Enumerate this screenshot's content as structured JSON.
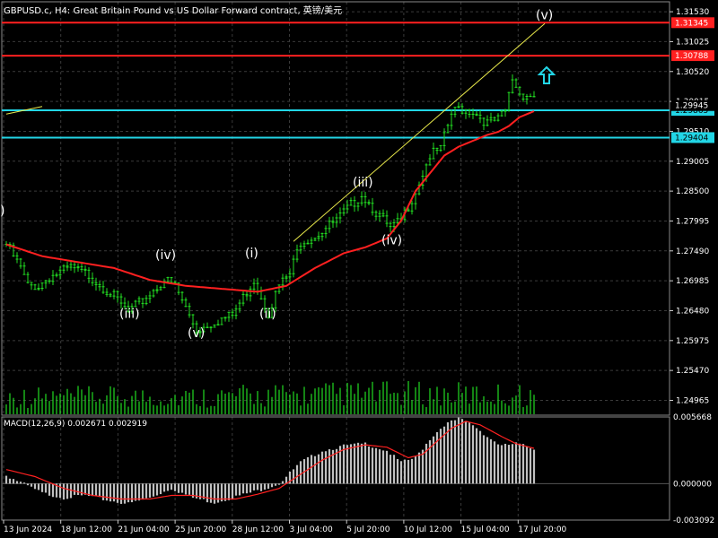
{
  "window": {
    "title": "GBPUSD.c, H4:  Great Britain Pound vs US Dollar Forward contract, 英镑/美元"
  },
  "colors": {
    "background": "#000000",
    "grid": "#3a3a3a",
    "bull_candle": "#22dd22",
    "moving_average": "#ff2020",
    "resistance_line": "#ff2020",
    "support_line": "#22d6e6",
    "trend_line": "#e8e84a",
    "arrow": "#22d6e6",
    "volume": "#22dd22",
    "macd_histogram": "#c0c0c0",
    "macd_signal": "#ff2020"
  },
  "price_axis": {
    "ticks": [
      "1.31530",
      "1.31025",
      "1.30520",
      "1.30015",
      "1.29510",
      "1.29005",
      "1.28500",
      "1.27995",
      "1.27490",
      "1.26985",
      "1.26480",
      "1.25975",
      "1.25470",
      "1.24965"
    ]
  },
  "price_tags": [
    {
      "label": "1.31345",
      "value": 1.31345,
      "kind": "resistance"
    },
    {
      "label": "1.30788",
      "value": 1.30788,
      "kind": "resistance"
    },
    {
      "label": "1.29865",
      "value": 1.29865,
      "kind": "support"
    },
    {
      "label": "1.29404",
      "value": 1.29404,
      "kind": "support"
    },
    {
      "label": "1.29945",
      "value": 1.29945,
      "kind": "current"
    }
  ],
  "time_axis": {
    "ticks": [
      "13 Jun 2024",
      "18 Jun 12:00",
      "21 Jun 04:00",
      "25 Jun 20:00",
      "28 Jun 12:00",
      "3 Jul 04:00",
      "5 Jul 20:00",
      "10 Jul 12:00",
      "15 Jul 04:00",
      "17 Jul 20:00"
    ]
  },
  "wave_labels": [
    {
      "text": "(iii)",
      "price": 1.2636,
      "bar": 34
    },
    {
      "text": "(iv)",
      "price": 1.2735,
      "bar": 44
    },
    {
      "text": "(v)",
      "price": 1.2603,
      "bar": 53
    },
    {
      "text": "(i)",
      "price": 1.2738,
      "bar": 69
    },
    {
      "text": "(ii)",
      "price": 1.2636,
      "bar": 73
    },
    {
      "text": "(iii)",
      "price": 1.2858,
      "bar": 99
    },
    {
      "text": "(iv)",
      "price": 1.276,
      "bar": 107
    },
    {
      "text": "(v)",
      "price": 1.314,
      "bar": 150
    },
    {
      "text": ")",
      "price": 1.281,
      "bar": 0
    }
  ],
  "macd": {
    "label": "MACD(12,26,9) 0.002671 0.002919",
    "ticks": [
      "0.005668",
      "0.000000",
      "-0.003092"
    ]
  },
  "chart_data": {
    "type": "candlestick",
    "title": "GBPUSD.c, H4:  Great Britain Pound vs US Dollar Forward contract, 英镑/美元",
    "timeframe": "H4",
    "ylim": [
      1.24715,
      1.31698
    ],
    "price": {
      "anchors": [
        [
          0,
          1.276
        ],
        [
          4,
          1.272
        ],
        [
          6,
          1.269
        ],
        [
          9,
          1.269
        ],
        [
          12,
          1.2705
        ],
        [
          18,
          1.272
        ],
        [
          23,
          1.2708
        ],
        [
          29,
          1.2678
        ],
        [
          34,
          1.2645
        ],
        [
          38,
          1.2665
        ],
        [
          44,
          1.27
        ],
        [
          47,
          1.269
        ],
        [
          53,
          1.2615
        ],
        [
          58,
          1.263
        ],
        [
          63,
          1.264
        ],
        [
          69,
          1.27
        ],
        [
          73,
          1.2645
        ],
        [
          76,
          1.269
        ],
        [
          79,
          1.271
        ],
        [
          82,
          1.2765
        ],
        [
          86,
          1.2775
        ],
        [
          92,
          1.28
        ],
        [
          99,
          1.2845
        ],
        [
          103,
          1.2815
        ],
        [
          107,
          1.2785
        ],
        [
          110,
          1.28
        ],
        [
          114,
          1.285
        ],
        [
          118,
          1.291
        ],
        [
          121,
          1.292
        ],
        [
          124,
          1.298
        ],
        [
          126,
          1.299
        ],
        [
          130,
          1.2985
        ],
        [
          134,
          1.2965
        ],
        [
          137,
          1.297
        ],
        [
          139,
          1.2985
        ],
        [
          141,
          1.304
        ],
        [
          143,
          1.3015
        ],
        [
          147,
          1.301
        ]
      ]
    },
    "moving_average": {
      "anchors": [
        [
          0,
          1.276
        ],
        [
          10,
          1.274
        ],
        [
          20,
          1.273
        ],
        [
          30,
          1.272
        ],
        [
          40,
          1.27
        ],
        [
          50,
          1.269
        ],
        [
          60,
          1.2685
        ],
        [
          70,
          1.268
        ],
        [
          78,
          1.269
        ],
        [
          86,
          1.272
        ],
        [
          94,
          1.2745
        ],
        [
          100,
          1.2755
        ],
        [
          106,
          1.277
        ],
        [
          110,
          1.28
        ],
        [
          114,
          1.285
        ],
        [
          118,
          1.288
        ],
        [
          122,
          1.291
        ],
        [
          126,
          1.2925
        ],
        [
          130,
          1.2935
        ],
        [
          134,
          1.2945
        ],
        [
          137,
          1.295
        ],
        [
          140,
          1.296
        ],
        [
          143,
          1.2975
        ],
        [
          147,
          1.2985
        ]
      ]
    },
    "horizontal_levels": [
      1.31345,
      1.30788,
      1.29865,
      1.29404
    ],
    "trend_lines": [
      {
        "from": [
          0,
          1.298
        ],
        "to": [
          10,
          1.2993
        ]
      },
      {
        "from": [
          80,
          1.2765
        ],
        "to": [
          150,
          1.3133
        ]
      }
    ],
    "macd": {
      "ylim": [
        -0.003092,
        0.005668
      ],
      "histogram_anchors": [
        [
          0,
          0.0007
        ],
        [
          6,
          -0.0002
        ],
        [
          10,
          -0.0008
        ],
        [
          16,
          -0.0012
        ],
        [
          22,
          -0.001
        ],
        [
          28,
          -0.0014
        ],
        [
          34,
          -0.0017
        ],
        [
          40,
          -0.0012
        ],
        [
          46,
          -0.0004
        ],
        [
          52,
          -0.0012
        ],
        [
          58,
          -0.0016
        ],
        [
          64,
          -0.0011
        ],
        [
          70,
          -0.0006
        ],
        [
          76,
          0.0
        ],
        [
          82,
          0.0018
        ],
        [
          88,
          0.0028
        ],
        [
          94,
          0.0032
        ],
        [
          100,
          0.0034
        ],
        [
          106,
          0.0028
        ],
        [
          110,
          0.0018
        ],
        [
          114,
          0.0022
        ],
        [
          118,
          0.0038
        ],
        [
          122,
          0.005
        ],
        [
          126,
          0.0055
        ],
        [
          130,
          0.005
        ],
        [
          134,
          0.004
        ],
        [
          138,
          0.0032
        ],
        [
          142,
          0.0034
        ],
        [
          147,
          0.003
        ]
      ],
      "signal_anchors": [
        [
          0,
          0.0012
        ],
        [
          8,
          0.0006
        ],
        [
          16,
          -0.0004
        ],
        [
          24,
          -0.001
        ],
        [
          32,
          -0.0013
        ],
        [
          40,
          -0.0013
        ],
        [
          46,
          -0.001
        ],
        [
          52,
          -0.001
        ],
        [
          58,
          -0.0013
        ],
        [
          64,
          -0.0013
        ],
        [
          70,
          -0.0009
        ],
        [
          76,
          -0.0004
        ],
        [
          82,
          0.0008
        ],
        [
          88,
          0.002
        ],
        [
          94,
          0.0029
        ],
        [
          100,
          0.0033
        ],
        [
          106,
          0.0031
        ],
        [
          112,
          0.0022
        ],
        [
          116,
          0.0025
        ],
        [
          120,
          0.0036
        ],
        [
          124,
          0.0047
        ],
        [
          128,
          0.0053
        ],
        [
          132,
          0.005
        ],
        [
          138,
          0.004
        ],
        [
          142,
          0.0034
        ],
        [
          147,
          0.003
        ]
      ]
    },
    "volume": {
      "baseline_anchors": [
        [
          0,
          0.5
        ],
        [
          50,
          0.5
        ],
        [
          100,
          0.6
        ],
        [
          147,
          0.55
        ]
      ]
    }
  }
}
